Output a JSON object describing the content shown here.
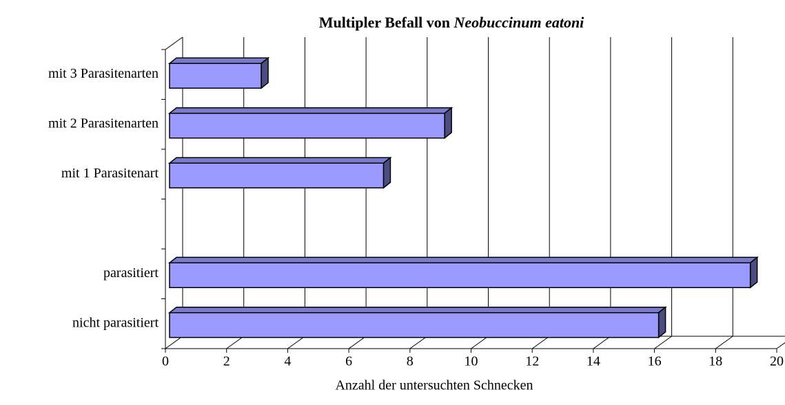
{
  "chart_data": {
    "type": "bar3d_horizontal",
    "title": [
      "Multipler Befall von",
      "Neobuccinum eatoni"
    ],
    "categories": [
      "mit 3 Parasitenarten",
      "mit 2 Parasitenarten",
      "mit 1 Parasitenart",
      null,
      "parasitiert",
      "nicht parasitiert"
    ],
    "values": [
      3,
      9,
      7,
      null,
      19,
      16
    ],
    "color": "#9999ff",
    "xlabel": "Anzahl der untersuchten Schnecken",
    "xlim": [
      0,
      20
    ],
    "xticks": [
      0,
      2,
      4,
      6,
      8,
      10,
      12,
      14,
      16,
      18,
      20
    ],
    "grid": true
  }
}
